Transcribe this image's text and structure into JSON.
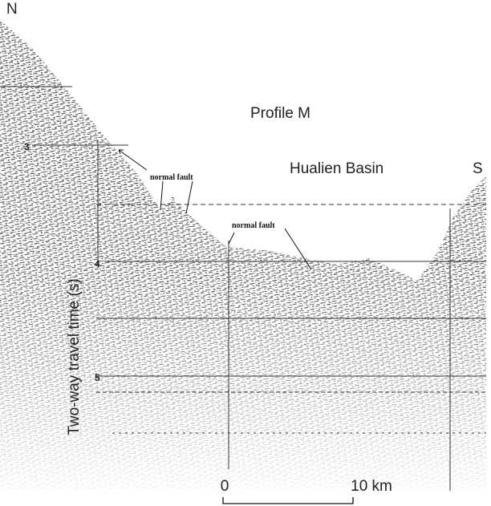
{
  "figure": {
    "north": "N",
    "south": "S",
    "title": "Profile M",
    "basin": "Hualien Basin",
    "faults": [
      "normal fault",
      "normal fault"
    ],
    "y_axis": {
      "label": "Two-way travel time (s)",
      "ticks": [
        "3",
        "4",
        "5"
      ]
    },
    "scale_bar": {
      "start": "0",
      "end": "10 km"
    }
  }
}
